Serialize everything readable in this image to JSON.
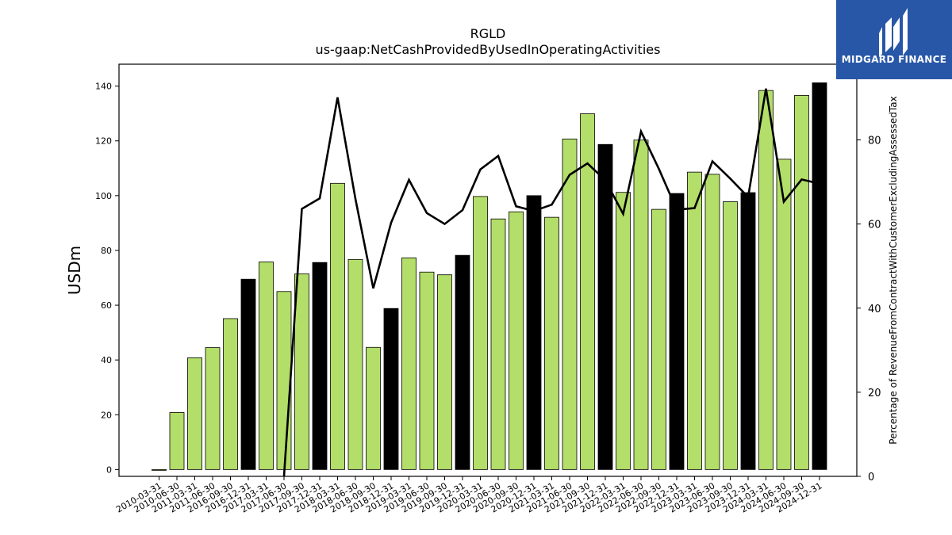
{
  "brand": {
    "name": "MIDGARD FINANCE",
    "color": "#2857a8"
  },
  "chart_data": {
    "type": "bar",
    "title": "RGLD",
    "subtitle": "us-gaap:NetCashProvidedByUsedInOperatingActivities",
    "ylabel": "USDm",
    "y2label": "Percentage of RevenueFromContractWithCustomerExcludingAssessedTax",
    "ylim": [
      -2.5,
      148
    ],
    "y2lim": [
      0,
      98
    ],
    "yticks": [
      0,
      20,
      40,
      60,
      80,
      100,
      120,
      140
    ],
    "y2ticks": [
      0,
      20,
      40,
      60,
      80
    ],
    "colors": {
      "bar_default": "#b3de69",
      "bar_q4": "#000000",
      "line": "#000000"
    },
    "categories": [
      "2010-03-31",
      "2010-06-30",
      "2011-03-31",
      "2011-06-30",
      "2016-09-30",
      "2016-12-31",
      "2017-03-31",
      "2017-06-30",
      "2017-09-30",
      "2017-12-31",
      "2018-03-31",
      "2018-06-30",
      "2018-09-30",
      "2018-12-31",
      "2019-03-31",
      "2019-06-30",
      "2019-09-30",
      "2019-12-31",
      "2020-03-31",
      "2020-06-30",
      "2020-09-30",
      "2020-12-31",
      "2021-03-31",
      "2021-06-30",
      "2021-09-30",
      "2021-12-31",
      "2022-03-31",
      "2022-06-30",
      "2022-09-30",
      "2022-12-31",
      "2023-03-31",
      "2023-06-30",
      "2023-09-30",
      "2023-12-31",
      "2024-03-31",
      "2024-06-30",
      "2024-09-30",
      "2024-12-31"
    ],
    "series": [
      {
        "type": "bar",
        "values": [
          -0.3,
          20.8,
          40.8,
          44.5,
          55.1,
          69.5,
          75.8,
          65.0,
          71.4,
          75.6,
          104.5,
          76.7,
          44.6,
          58.8,
          77.3,
          72.1,
          71.1,
          78.2,
          99.7,
          91.5,
          94.1,
          100.0,
          92.1,
          120.7,
          129.9,
          118.7,
          101.2,
          120.3,
          95.0,
          100.8,
          108.6,
          107.8,
          97.8,
          101.1,
          138.4,
          113.3,
          136.6,
          141.2
        ],
        "highlight": [
          false,
          false,
          false,
          false,
          false,
          true,
          false,
          false,
          false,
          true,
          false,
          false,
          false,
          true,
          false,
          false,
          false,
          true,
          false,
          false,
          false,
          true,
          false,
          false,
          false,
          true,
          false,
          false,
          false,
          true,
          false,
          false,
          false,
          true,
          false,
          false,
          false,
          true
        ]
      },
      {
        "type": "line",
        "axis": "right",
        "values": [
          null,
          null,
          null,
          null,
          null,
          null,
          null,
          0,
          63.6,
          66.1,
          90.1,
          66.0,
          44.7,
          60.3,
          70.5,
          62.6,
          60.0,
          63.3,
          73.0,
          76.2,
          64.2,
          63.1,
          64.6,
          71.7,
          74.4,
          70.4,
          62.4,
          82.0,
          73.1,
          63.4,
          63.8,
          74.9,
          70.8,
          66.4,
          92.2,
          65.3,
          70.6,
          69.6
        ]
      }
    ]
  }
}
